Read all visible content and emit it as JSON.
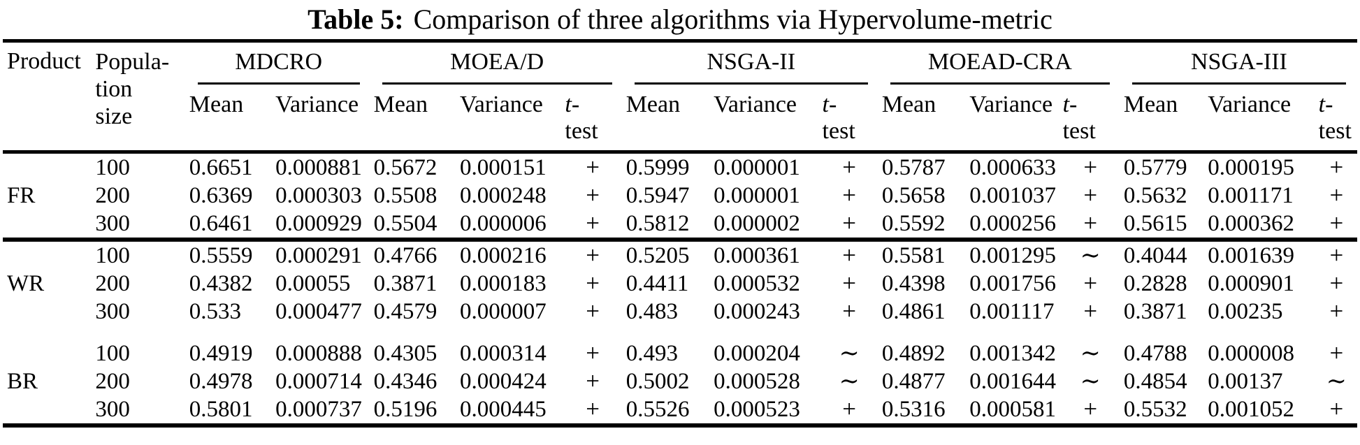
{
  "title": {
    "tag": "Table 5:",
    "text": "Comparison of three algorithms via Hypervolume-metric"
  },
  "header": {
    "product": "Product",
    "population_lines": [
      "Popula-",
      "tion",
      "size"
    ],
    "mean": "Mean",
    "variance": "Variance",
    "ttest_line1": "t-",
    "ttest_line2": "test",
    "groups": [
      {
        "name": "MDCRO",
        "columns": [
          "Mean",
          "Variance"
        ]
      },
      {
        "name": "MOEA/D",
        "columns": [
          "Mean",
          "Variance",
          "t-test"
        ]
      },
      {
        "name": "NSGA-II",
        "columns": [
          "Mean",
          "Variance",
          "t-test"
        ]
      },
      {
        "name": "MOEAD-CRA",
        "columns": [
          "Mean",
          "Variance",
          "t-test"
        ]
      },
      {
        "name": "NSGA-III",
        "columns": [
          "Mean",
          "Variance",
          "t-test"
        ]
      }
    ]
  },
  "sections": [
    {
      "product": "FR",
      "rows": [
        {
          "size": "100",
          "values": [
            "0.6651",
            "0.000881",
            "0.5672",
            "0.000151",
            "+",
            "0.5999",
            "0.000001",
            "+",
            "0.5787",
            "0.000633",
            "+",
            "0.5779",
            "0.000195",
            "+"
          ]
        },
        {
          "size": "200",
          "values": [
            "0.6369",
            "0.000303",
            "0.5508",
            "0.000248",
            "+",
            "0.5947",
            "0.000001",
            "+",
            "0.5658",
            "0.001037",
            "+",
            "0.5632",
            "0.001171",
            "+"
          ]
        },
        {
          "size": "300",
          "values": [
            "0.6461",
            "0.000929",
            "0.5504",
            "0.000006",
            "+",
            "0.5812",
            "0.000002",
            "+",
            "0.5592",
            "0.000256",
            "+",
            "0.5615",
            "0.000362",
            "+"
          ]
        }
      ]
    },
    {
      "product": "WR",
      "rows": [
        {
          "size": "100",
          "values": [
            "0.5559",
            "0.000291",
            "0.4766",
            "0.000216",
            "+",
            "0.5205",
            "0.000361",
            "+",
            "0.5581",
            "0.001295",
            "∼",
            "0.4044",
            "0.001639",
            "+"
          ]
        },
        {
          "size": "200",
          "values": [
            "0.4382",
            "0.00055",
            "0.3871",
            "0.000183",
            "+",
            "0.4411",
            "0.000532",
            "+",
            "0.4398",
            "0.001756",
            "+",
            "0.2828",
            "0.000901",
            "+"
          ]
        },
        {
          "size": "300",
          "values": [
            "0.533",
            "0.000477",
            "0.4579",
            "0.000007",
            "+",
            "0.483",
            "0.000243",
            "+",
            "0.4861",
            "0.001117",
            "+",
            "0.3871",
            "0.00235",
            "+"
          ]
        }
      ]
    },
    {
      "product": "BR",
      "rows": [
        {
          "size": "100",
          "values": [
            "0.4919",
            "0.000888",
            "0.4305",
            "0.000314",
            "+",
            "0.493",
            "0.000204",
            "∼",
            "0.4892",
            "0.001342",
            "∼",
            "0.4788",
            "0.000008",
            "+"
          ]
        },
        {
          "size": "200",
          "values": [
            "0.4978",
            "0.000714",
            "0.4346",
            "0.000424",
            "+",
            "0.5002",
            "0.000528",
            "∼",
            "0.4877",
            "0.001644",
            "∼",
            "0.4854",
            "0.00137",
            "∼"
          ]
        },
        {
          "size": "300",
          "values": [
            "0.5801",
            "0.000737",
            "0.5196",
            "0.000445",
            "+",
            "0.5526",
            "0.000523",
            "+",
            "0.5316",
            "0.000581",
            "+",
            "0.5532",
            "0.001052",
            "+"
          ]
        }
      ]
    }
  ]
}
